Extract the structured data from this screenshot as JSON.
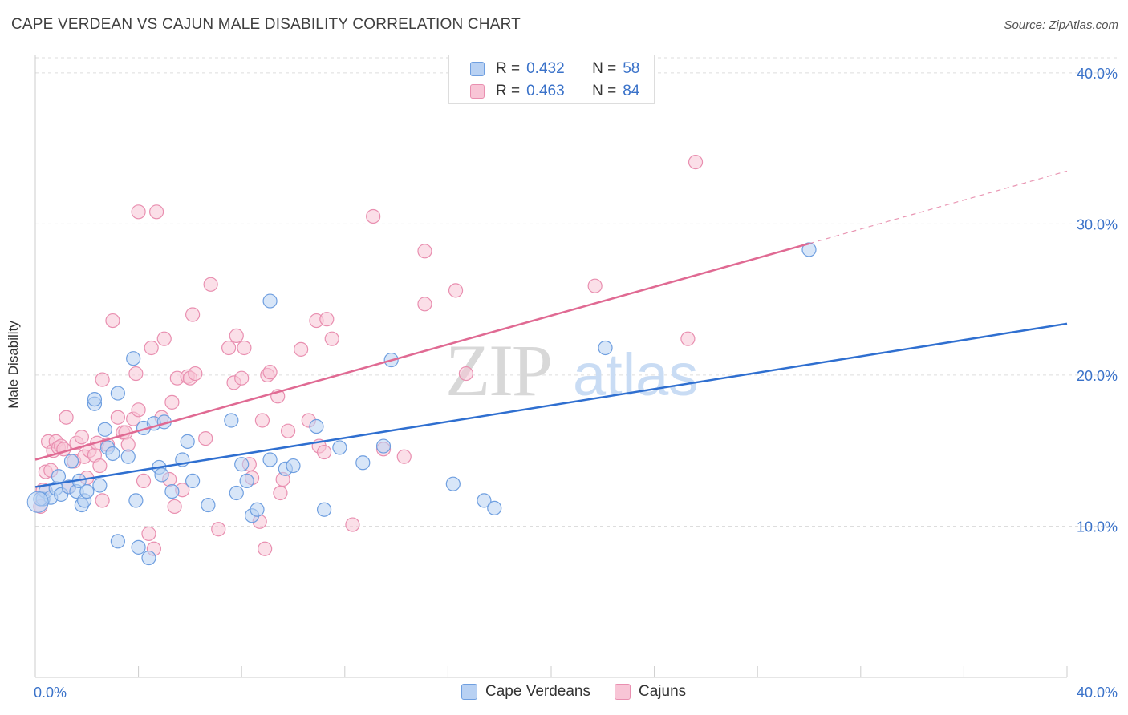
{
  "header": {
    "title": "CAPE VERDEAN VS CAJUN MALE DISABILITY CORRELATION CHART",
    "source": "Source: ZipAtlas.com"
  },
  "legend": {
    "r_label": "R =",
    "n_label": "N =",
    "series": [
      {
        "name": "Cape Verdeans",
        "r": "0.432",
        "n": "58"
      },
      {
        "name": "Cajuns",
        "r": "0.463",
        "n": "84"
      }
    ]
  },
  "watermark": {
    "zip": "ZIP",
    "atlas": "atlas"
  },
  "colors": {
    "blue_fill": "#b8d1f3",
    "blue_stroke": "#6f9fe0",
    "blue_line": "#2f6fd0",
    "pink_fill": "#f8c5d6",
    "pink_stroke": "#e98fb0",
    "pink_line": "#e06a93",
    "tick_label": "#3a72c9"
  },
  "chart_data": {
    "type": "scatter",
    "ylabel": "Male Disability",
    "xlim": [
      0,
      40
    ],
    "ylim": [
      0,
      41
    ],
    "x_tick_labels": [
      "0.0%",
      "40.0%"
    ],
    "y_ticks": [
      10,
      20,
      30,
      40
    ],
    "y_tick_labels": [
      "10.0%",
      "20.0%",
      "30.0%",
      "40.0%"
    ],
    "grid": true,
    "series": [
      {
        "name": "Cape Verdeans",
        "trend": {
          "x": [
            0,
            40
          ],
          "y": [
            12.6,
            23.4
          ]
        },
        "points": [
          [
            0.3,
            11.8
          ],
          [
            0.4,
            12.3
          ],
          [
            0.6,
            11.9
          ],
          [
            0.8,
            12.5
          ],
          [
            0.9,
            13.3
          ],
          [
            1.0,
            12.1
          ],
          [
            1.3,
            12.6
          ],
          [
            1.4,
            14.3
          ],
          [
            1.6,
            12.3
          ],
          [
            1.7,
            13.0
          ],
          [
            1.8,
            11.4
          ],
          [
            1.9,
            11.7
          ],
          [
            2.0,
            12.3
          ],
          [
            2.3,
            18.1
          ],
          [
            2.3,
            18.4
          ],
          [
            2.5,
            12.7
          ],
          [
            2.7,
            16.4
          ],
          [
            2.8,
            15.2
          ],
          [
            3.0,
            14.8
          ],
          [
            3.2,
            18.8
          ],
          [
            3.2,
            9.0
          ],
          [
            3.6,
            14.6
          ],
          [
            3.8,
            21.1
          ],
          [
            3.9,
            11.7
          ],
          [
            4.0,
            8.6
          ],
          [
            4.2,
            16.5
          ],
          [
            4.4,
            7.9
          ],
          [
            4.6,
            16.8
          ],
          [
            4.8,
            13.9
          ],
          [
            4.9,
            13.4
          ],
          [
            5.0,
            16.9
          ],
          [
            5.3,
            12.3
          ],
          [
            5.7,
            14.4
          ],
          [
            5.9,
            15.6
          ],
          [
            6.1,
            13.0
          ],
          [
            6.7,
            11.4
          ],
          [
            7.6,
            17.0
          ],
          [
            7.8,
            12.2
          ],
          [
            8.0,
            14.1
          ],
          [
            8.2,
            13.0
          ],
          [
            8.4,
            10.7
          ],
          [
            8.6,
            11.1
          ],
          [
            9.1,
            24.9
          ],
          [
            9.1,
            14.4
          ],
          [
            9.7,
            13.8
          ],
          [
            10.0,
            14.0
          ],
          [
            10.9,
            16.6
          ],
          [
            11.2,
            11.1
          ],
          [
            11.8,
            15.2
          ],
          [
            12.7,
            14.2
          ],
          [
            13.5,
            15.3
          ],
          [
            13.8,
            21.0
          ],
          [
            16.2,
            12.8
          ],
          [
            17.4,
            11.7
          ],
          [
            17.8,
            11.2
          ],
          [
            22.1,
            21.8
          ],
          [
            30.0,
            28.3
          ],
          [
            0.2,
            11.8
          ]
        ]
      },
      {
        "name": "Cajuns",
        "trend": {
          "x": [
            0,
            30
          ],
          "y": [
            14.4,
            28.7
          ]
        },
        "trend_dashed": {
          "x": [
            30,
            40
          ],
          "y": [
            28.7,
            33.5
          ]
        },
        "points": [
          [
            0.2,
            11.3
          ],
          [
            0.3,
            12.4
          ],
          [
            0.4,
            13.6
          ],
          [
            0.5,
            15.6
          ],
          [
            0.6,
            13.7
          ],
          [
            0.7,
            15.0
          ],
          [
            0.8,
            15.6
          ],
          [
            0.9,
            15.2
          ],
          [
            1.0,
            15.3
          ],
          [
            1.1,
            15.1
          ],
          [
            1.2,
            17.2
          ],
          [
            1.3,
            12.6
          ],
          [
            1.5,
            14.3
          ],
          [
            1.6,
            15.5
          ],
          [
            1.8,
            15.9
          ],
          [
            1.9,
            14.6
          ],
          [
            2.0,
            13.2
          ],
          [
            2.1,
            15.0
          ],
          [
            2.3,
            14.7
          ],
          [
            2.4,
            15.5
          ],
          [
            2.5,
            14.0
          ],
          [
            2.6,
            19.7
          ],
          [
            2.6,
            11.7
          ],
          [
            2.8,
            15.4
          ],
          [
            3.0,
            23.6
          ],
          [
            3.2,
            17.2
          ],
          [
            3.4,
            16.2
          ],
          [
            3.5,
            16.2
          ],
          [
            3.6,
            15.4
          ],
          [
            3.8,
            17.1
          ],
          [
            3.9,
            20.1
          ],
          [
            4.0,
            17.7
          ],
          [
            4.0,
            30.8
          ],
          [
            4.2,
            13.0
          ],
          [
            4.4,
            9.5
          ],
          [
            4.5,
            21.8
          ],
          [
            4.6,
            8.5
          ],
          [
            4.7,
            30.8
          ],
          [
            4.9,
            17.2
          ],
          [
            5.0,
            22.4
          ],
          [
            5.2,
            13.1
          ],
          [
            5.3,
            18.2
          ],
          [
            5.4,
            11.3
          ],
          [
            5.5,
            19.8
          ],
          [
            5.7,
            12.4
          ],
          [
            5.9,
            19.9
          ],
          [
            6.0,
            19.8
          ],
          [
            6.1,
            24.0
          ],
          [
            6.2,
            20.1
          ],
          [
            6.6,
            15.8
          ],
          [
            6.8,
            26.0
          ],
          [
            7.1,
            9.8
          ],
          [
            7.5,
            21.8
          ],
          [
            7.7,
            19.5
          ],
          [
            7.8,
            22.6
          ],
          [
            8.0,
            19.8
          ],
          [
            8.1,
            21.8
          ],
          [
            8.3,
            14.1
          ],
          [
            8.4,
            13.2
          ],
          [
            8.7,
            10.3
          ],
          [
            8.8,
            17.0
          ],
          [
            8.9,
            8.5
          ],
          [
            9.0,
            20.0
          ],
          [
            9.1,
            20.2
          ],
          [
            9.4,
            18.6
          ],
          [
            9.5,
            12.2
          ],
          [
            9.6,
            13.1
          ],
          [
            9.8,
            16.3
          ],
          [
            10.3,
            21.7
          ],
          [
            10.6,
            17.0
          ],
          [
            10.9,
            23.6
          ],
          [
            11.0,
            15.3
          ],
          [
            11.2,
            14.9
          ],
          [
            11.3,
            23.7
          ],
          [
            11.5,
            22.4
          ],
          [
            12.3,
            10.1
          ],
          [
            13.1,
            30.5
          ],
          [
            13.5,
            15.1
          ],
          [
            14.3,
            14.6
          ],
          [
            15.1,
            28.2
          ],
          [
            15.1,
            24.7
          ],
          [
            16.3,
            25.6
          ],
          [
            16.7,
            20.1
          ],
          [
            21.7,
            25.9
          ]
        ]
      }
    ],
    "extra_points": {
      "Cajuns": [
        [
          25.3,
          22.4
        ],
        [
          25.6,
          34.1
        ]
      ]
    }
  }
}
